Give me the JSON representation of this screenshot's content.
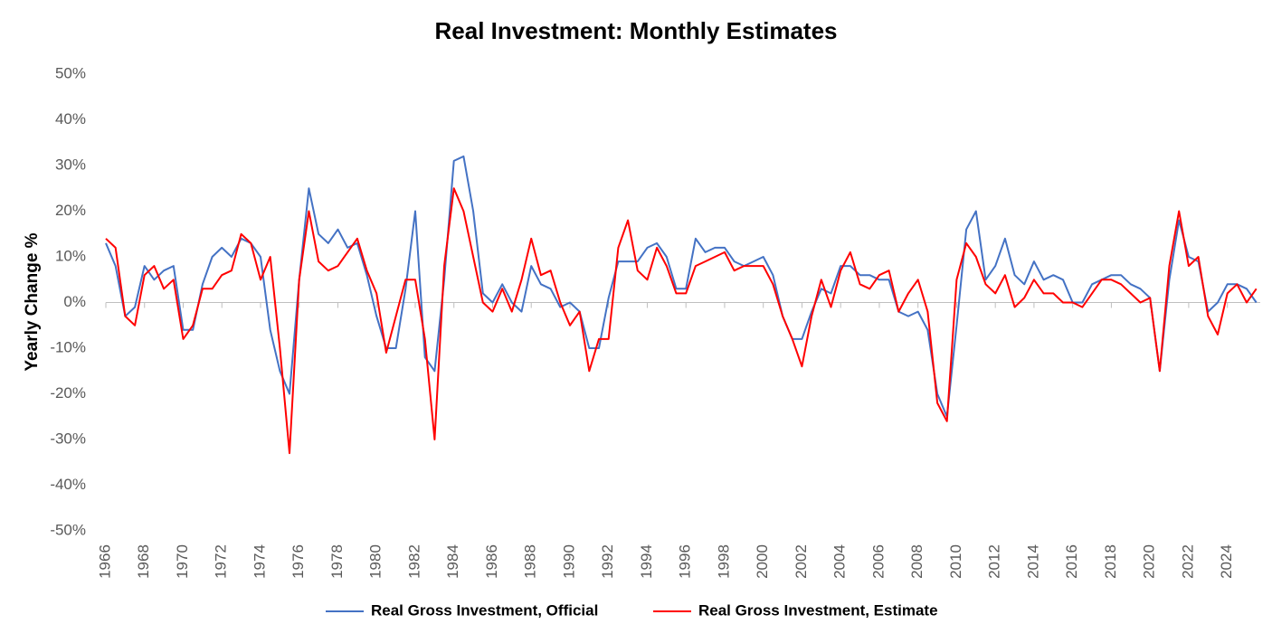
{
  "chart_data": {
    "type": "line",
    "title": "Real Investment: Monthly Estimates",
    "ylabel": "Yearly Change %",
    "x": [
      1966,
      1966.5,
      1967,
      1967.5,
      1968,
      1968.5,
      1969,
      1969.5,
      1970,
      1970.5,
      1971,
      1971.5,
      1972,
      1972.5,
      1973,
      1973.5,
      1974,
      1974.5,
      1975,
      1975.5,
      1976,
      1976.5,
      1977,
      1977.5,
      1978,
      1978.5,
      1979,
      1979.5,
      1980,
      1980.5,
      1981,
      1981.5,
      1982,
      1982.5,
      1983,
      1983.5,
      1984,
      1984.5,
      1985,
      1985.5,
      1986,
      1986.5,
      1987,
      1987.5,
      1988,
      1988.5,
      1989,
      1989.5,
      1990,
      1990.5,
      1991,
      1991.5,
      1992,
      1992.5,
      1993,
      1993.5,
      1994,
      1994.5,
      1995,
      1995.5,
      1996,
      1996.5,
      1997,
      1997.5,
      1998,
      1998.5,
      1999,
      1999.5,
      2000,
      2000.5,
      2001,
      2001.5,
      2002,
      2002.5,
      2003,
      2003.5,
      2004,
      2004.5,
      2005,
      2005.5,
      2006,
      2006.5,
      2007,
      2007.5,
      2008,
      2008.5,
      2009,
      2009.5,
      2010,
      2010.5,
      2011,
      2011.5,
      2012,
      2012.5,
      2013,
      2013.5,
      2014,
      2014.5,
      2015,
      2015.5,
      2016,
      2016.5,
      2017,
      2017.5,
      2018,
      2018.5,
      2019,
      2019.5,
      2020,
      2020.5,
      2021,
      2021.5,
      2022,
      2022.5,
      2023,
      2023.5,
      2024,
      2024.5,
      2025,
      2025.5
    ],
    "series": [
      {
        "name": "Real Gross Investment, Official",
        "color": "#4472c4",
        "values": [
          13,
          8,
          -3,
          -1,
          8,
          5,
          7,
          8,
          -6,
          -6,
          4,
          10,
          12,
          10,
          14,
          13,
          10,
          -6,
          -15,
          -20,
          5,
          25,
          15,
          13,
          16,
          12,
          13,
          6,
          -3,
          -10,
          -10,
          3,
          20,
          -12,
          -15,
          5,
          31,
          32,
          20,
          2,
          0,
          4,
          0,
          -2,
          8,
          4,
          3,
          -1,
          0,
          -2,
          -10,
          -10,
          1,
          9,
          9,
          9,
          12,
          13,
          10,
          3,
          3,
          14,
          11,
          12,
          12,
          9,
          8,
          9,
          10,
          6,
          -3,
          -8,
          -8,
          -2,
          3,
          2,
          8,
          8,
          6,
          6,
          5,
          5,
          -2,
          -3,
          -2,
          -6,
          -20,
          -25,
          -5,
          16,
          20,
          5,
          8,
          14,
          6,
          4,
          9,
          5,
          6,
          5,
          0,
          0,
          4,
          5,
          6,
          6,
          4,
          3,
          1,
          -15,
          5,
          18,
          10,
          9,
          -2,
          0,
          4,
          4,
          3,
          0
        ]
      },
      {
        "name": "Real Gross Investment, Estimate",
        "color": "#ff0000",
        "values": [
          14,
          12,
          -3,
          -5,
          6,
          8,
          3,
          5,
          -8,
          -5,
          3,
          3,
          6,
          7,
          15,
          13,
          5,
          10,
          -10,
          -33,
          5,
          20,
          9,
          7,
          8,
          11,
          14,
          7,
          2,
          -11,
          -3,
          5,
          5,
          -8,
          -30,
          8,
          25,
          20,
          10,
          0,
          -2,
          3,
          -2,
          5,
          14,
          6,
          7,
          0,
          -5,
          -2,
          -15,
          -8,
          -8,
          12,
          18,
          7,
          5,
          12,
          8,
          2,
          2,
          8,
          9,
          10,
          11,
          7,
          8,
          8,
          8,
          4,
          -3,
          -8,
          -14,
          -3,
          5,
          -1,
          7,
          11,
          4,
          3,
          6,
          7,
          -2,
          2,
          5,
          -2,
          -22,
          -26,
          5,
          13,
          10,
          4,
          2,
          6,
          -1,
          1,
          5,
          2,
          2,
          0,
          0,
          -1,
          2,
          5,
          5,
          4,
          2,
          0,
          1,
          -15,
          8,
          20,
          8,
          10,
          -3,
          -7,
          2,
          4,
          0,
          3
        ]
      }
    ],
    "xlim": [
      1966,
      2025.7
    ],
    "xticks": [
      1966,
      1968,
      1970,
      1972,
      1974,
      1976,
      1978,
      1980,
      1982,
      1984,
      1986,
      1988,
      1990,
      1992,
      1994,
      1996,
      1998,
      2000,
      2002,
      2004,
      2006,
      2008,
      2010,
      2012,
      2014,
      2016,
      2018,
      2020,
      2022,
      2024
    ],
    "ylim": [
      -50,
      50
    ],
    "yticks": [
      {
        "value": -50,
        "label": "-50%"
      },
      {
        "value": -40,
        "label": "-40%"
      },
      {
        "value": -30,
        "label": "-30%"
      },
      {
        "value": -20,
        "label": "-20%"
      },
      {
        "value": -10,
        "label": "-10%"
      },
      {
        "value": 0,
        "label": "0%"
      },
      {
        "value": 10,
        "label": "10%"
      },
      {
        "value": 20,
        "label": "20%"
      },
      {
        "value": 30,
        "label": "30%"
      },
      {
        "value": 40,
        "label": "40%"
      },
      {
        "value": 50,
        "label": "50%"
      }
    ],
    "grid": false,
    "legend": "bottom"
  }
}
